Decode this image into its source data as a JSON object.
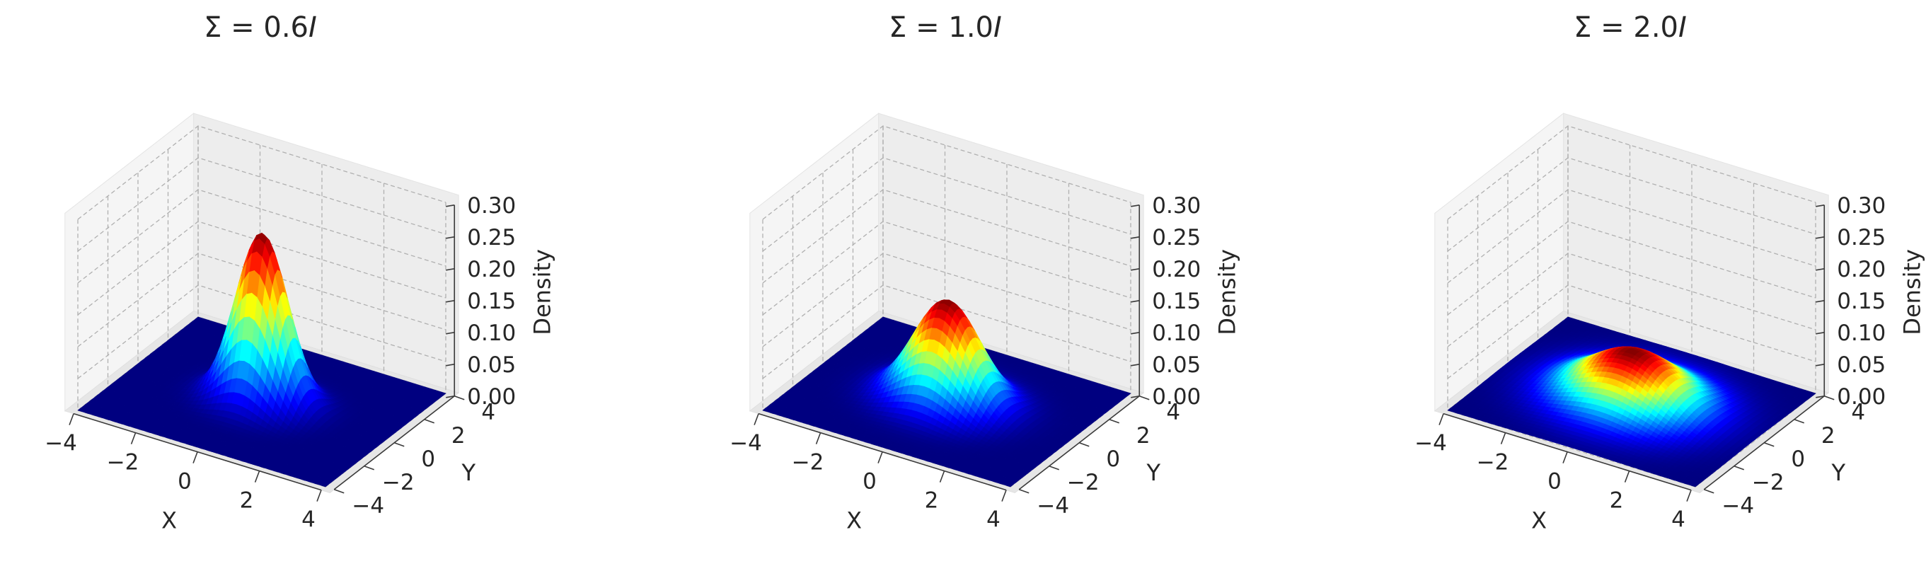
{
  "chart_data": [
    {
      "type": "surface3d",
      "title_prefix": "Σ = 0.6",
      "title_suffix": "I",
      "xlabel": "X",
      "ylabel": "Y",
      "zlabel": "Density",
      "xlim": [
        -4,
        4
      ],
      "ylim": [
        -4,
        4
      ],
      "zlim": [
        0,
        0.3
      ],
      "xticks": [
        "−4",
        "−2",
        "0",
        "2",
        "4"
      ],
      "yticks": [
        "−4",
        "−2",
        "0",
        "2",
        "4"
      ],
      "zticks": [
        "0.00",
        "0.05",
        "0.10",
        "0.15",
        "0.20",
        "0.25",
        "0.30"
      ],
      "sigma": 0.6,
      "colormap": "jet",
      "grid": true
    },
    {
      "type": "surface3d",
      "title_prefix": "Σ = 1.0",
      "title_suffix": "I",
      "xlabel": "X",
      "ylabel": "Y",
      "zlabel": "Density",
      "xlim": [
        -4,
        4
      ],
      "ylim": [
        -4,
        4
      ],
      "zlim": [
        0,
        0.3
      ],
      "xticks": [
        "−4",
        "−2",
        "0",
        "2",
        "4"
      ],
      "yticks": [
        "−4",
        "−2",
        "0",
        "2",
        "4"
      ],
      "zticks": [
        "0.00",
        "0.05",
        "0.10",
        "0.15",
        "0.20",
        "0.25",
        "0.30"
      ],
      "sigma": 1.0,
      "colormap": "jet",
      "grid": true
    },
    {
      "type": "surface3d",
      "title_prefix": "Σ = 2.0",
      "title_suffix": "I",
      "xlabel": "X",
      "ylabel": "Y",
      "zlabel": "Density",
      "xlim": [
        -4,
        4
      ],
      "ylim": [
        -4,
        4
      ],
      "zlim": [
        0,
        0.3
      ],
      "xticks": [
        "−4",
        "−2",
        "0",
        "2",
        "4"
      ],
      "yticks": [
        "−4",
        "−2",
        "0",
        "2",
        "4"
      ],
      "zticks": [
        "0.00",
        "0.05",
        "0.10",
        "0.15",
        "0.20",
        "0.25",
        "0.30"
      ],
      "sigma": 2.0,
      "colormap": "jet",
      "grid": true
    }
  ]
}
